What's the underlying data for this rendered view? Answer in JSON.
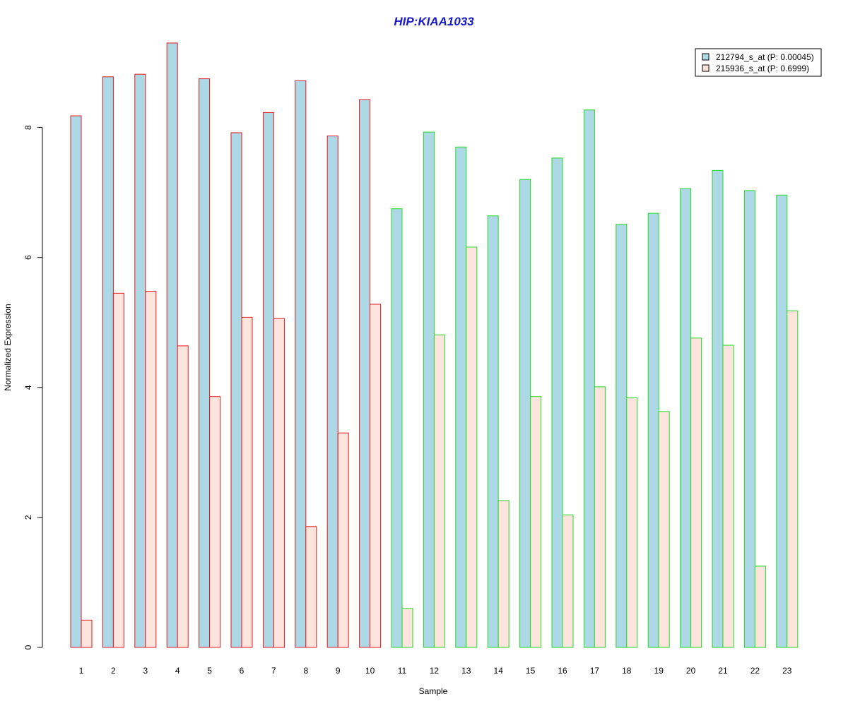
{
  "chart_data": {
    "type": "bar",
    "title": "HIP:KIAA1033",
    "xlabel": "Sample",
    "ylabel": "Normalized Expression",
    "categories": [
      "1",
      "2",
      "3",
      "4",
      "5",
      "6",
      "7",
      "8",
      "9",
      "10",
      "11",
      "12",
      "13",
      "14",
      "15",
      "16",
      "17",
      "18",
      "19",
      "20",
      "21",
      "22",
      "23"
    ],
    "yticks": [
      "0",
      "2",
      "4",
      "6",
      "8"
    ],
    "ylim": [
      0,
      9.4
    ],
    "series": [
      {
        "name": "212794_s_at (P: 0.00045)",
        "fill": "#add8e6",
        "values": [
          8.18,
          8.78,
          8.82,
          9.3,
          8.75,
          7.92,
          8.23,
          8.72,
          7.87,
          8.43,
          6.75,
          7.93,
          7.7,
          6.64,
          7.2,
          7.53,
          8.27,
          6.51,
          6.68,
          7.06,
          7.34,
          7.03,
          6.96
        ]
      },
      {
        "name": "215936_s_at (P: 0.6999)",
        "fill": "#fde4dc",
        "values": [
          0.42,
          5.45,
          5.48,
          4.64,
          3.86,
          5.08,
          5.06,
          1.86,
          3.3,
          5.28,
          0.6,
          4.81,
          6.16,
          2.26,
          3.86,
          2.04,
          4.01,
          3.84,
          3.63,
          4.76,
          4.65,
          1.25,
          5.18
        ]
      }
    ],
    "group_outline_colors": [
      "#e31a1c",
      "#e31a1c",
      "#e31a1c",
      "#e31a1c",
      "#e31a1c",
      "#e31a1c",
      "#e31a1c",
      "#e31a1c",
      "#e31a1c",
      "#e31a1c",
      "#22dd22",
      "#22dd22",
      "#22dd22",
      "#22dd22",
      "#22dd22",
      "#22dd22",
      "#22dd22",
      "#22dd22",
      "#22dd22",
      "#22dd22",
      "#22dd22",
      "#22dd22",
      "#22dd22"
    ],
    "title_color": "#1a1acd",
    "legend_position": "top-right",
    "grid": false
  }
}
